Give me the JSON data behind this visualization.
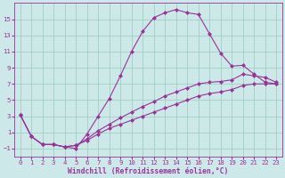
{
  "title": "",
  "xlabel": "Windchill (Refroidissement éolien,°C)",
  "background_color": "#cce8e8",
  "grid_color": "#99ccbb",
  "line_color": "#993399",
  "xlim": [
    -0.5,
    23.5
  ],
  "ylim": [
    -2.0,
    17.0
  ],
  "xticks": [
    0,
    1,
    2,
    3,
    4,
    5,
    6,
    7,
    8,
    9,
    10,
    11,
    12,
    13,
    14,
    15,
    16,
    17,
    18,
    19,
    20,
    21,
    22,
    23
  ],
  "yticks": [
    -1,
    1,
    3,
    5,
    7,
    9,
    11,
    13,
    15
  ],
  "line1_x": [
    0,
    1,
    2,
    3,
    4,
    5,
    6,
    7,
    8,
    9,
    10,
    11,
    12,
    13,
    14,
    15,
    16,
    17,
    18,
    19,
    20,
    21,
    22,
    23
  ],
  "line1_y": [
    3.2,
    0.5,
    -0.5,
    -0.5,
    -0.8,
    -1.0,
    0.8,
    3.0,
    5.2,
    8.0,
    11.0,
    13.5,
    15.2,
    15.8,
    16.2,
    15.8,
    15.6,
    13.2,
    10.8,
    9.2,
    9.3,
    8.2,
    7.2,
    7.0
  ],
  "line2_x": [
    0,
    1,
    2,
    3,
    4,
    5,
    6,
    7,
    8,
    9,
    10,
    11,
    12,
    13,
    14,
    15,
    16,
    17,
    18,
    19,
    20,
    21,
    22,
    23
  ],
  "line2_y": [
    3.2,
    0.5,
    -0.5,
    -0.5,
    -0.8,
    -0.6,
    0.2,
    1.2,
    2.0,
    2.8,
    3.5,
    4.2,
    4.8,
    5.5,
    6.0,
    6.5,
    7.0,
    7.2,
    7.3,
    7.5,
    8.2,
    8.0,
    7.8,
    7.2
  ],
  "line3_x": [
    0,
    1,
    2,
    3,
    4,
    5,
    6,
    7,
    8,
    9,
    10,
    11,
    12,
    13,
    14,
    15,
    16,
    17,
    18,
    19,
    20,
    21,
    22,
    23
  ],
  "line3_y": [
    3.2,
    0.5,
    -0.5,
    -0.5,
    -0.8,
    -0.6,
    0.0,
    0.8,
    1.5,
    2.0,
    2.5,
    3.0,
    3.5,
    4.0,
    4.5,
    5.0,
    5.5,
    5.8,
    6.0,
    6.3,
    6.8,
    7.0,
    7.0,
    7.0
  ],
  "marker": "D",
  "markersize": 2.0,
  "linewidth": 0.8,
  "tick_fontsize": 5.2,
  "label_fontsize": 5.8
}
